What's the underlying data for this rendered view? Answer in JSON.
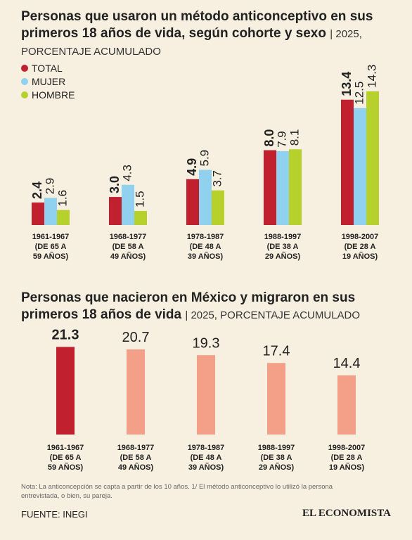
{
  "chart_data": [
    {
      "type": "bar",
      "title": "Personas que usaron un método anticonceptivo en sus primeros 18 años de vida, según cohorte y sexo",
      "subtitle": "| 2025, PORCENTAJE ACUMULADO",
      "categories": [
        "1961-1967\n(DE 65 A\n59 AÑOS)",
        "1968-1977\n(DE 58 A\n49 AÑOS)",
        "1978-1987\n(DE 48 A\n39 AÑOS)",
        "1988-1997\n(DE 38 A\n29 AÑOS)",
        "1998-2007\n(DE 28 A\n19 AÑOS)"
      ],
      "series": [
        {
          "name": "TOTAL",
          "color": "#c1202f",
          "values": [
            2.4,
            3.0,
            4.9,
            8.0,
            13.4
          ],
          "value_labels": [
            "2.4",
            "3.0",
            "4.9",
            "8.0",
            "13.4"
          ]
        },
        {
          "name": "MUJER",
          "color": "#8fd1ef",
          "values": [
            2.9,
            4.3,
            5.9,
            7.9,
            12.5
          ],
          "value_labels": [
            "2.9",
            "4.3",
            "5.9",
            "7.9",
            "12.5"
          ]
        },
        {
          "name": "HOMBRE",
          "color": "#b6d12c",
          "values": [
            1.6,
            1.5,
            3.7,
            8.1,
            14.3
          ],
          "value_labels": [
            "1.6",
            "1.5",
            "3.7",
            "8.1",
            "14.3"
          ]
        }
      ]
    },
    {
      "type": "bar",
      "title": "Personas que nacieron en México y migraron en sus primeros 18 años de vida",
      "subtitle": "| 2025, PORCENTAJE ACUMULADO",
      "categories": [
        "1961-1967\n(DE 65 A\n59 AÑOS)",
        "1968-1977\n(DE 58 A\n49 AÑOS)",
        "1978-1987\n(DE 48 A\n39 AÑOS)",
        "1988-1997\n(DE 38 A\n29 AÑOS)",
        "1998-2007\n(DE 28 A\n19 AÑOS)"
      ],
      "values": [
        21.3,
        20.7,
        19.3,
        17.4,
        14.4
      ],
      "colors": [
        "#c1202f",
        "#f4a088",
        "#f4a088",
        "#f4a088",
        "#f4a088"
      ]
    }
  ],
  "footer": {
    "note": "Nota: La anticoncepción se capta a partir de los 10 años. 1/ El método anticonceptivo lo utilizó la persona entrevistada, o bien, su pareja.",
    "source": "FUENTE: INEGI",
    "brand": "EL ECONOMISTA"
  }
}
